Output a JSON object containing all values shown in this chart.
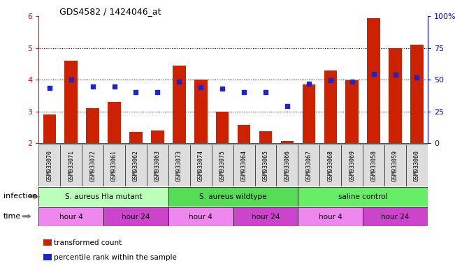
{
  "title": "GDS4582 / 1424046_at",
  "samples": [
    "GSM933070",
    "GSM933071",
    "GSM933072",
    "GSM933061",
    "GSM933062",
    "GSM933063",
    "GSM933073",
    "GSM933074",
    "GSM933075",
    "GSM933064",
    "GSM933065",
    "GSM933066",
    "GSM933067",
    "GSM933068",
    "GSM933069",
    "GSM933058",
    "GSM933059",
    "GSM933060"
  ],
  "bar_values": [
    2.9,
    4.6,
    3.1,
    3.3,
    2.37,
    2.4,
    4.45,
    4.0,
    3.0,
    2.57,
    2.38,
    2.07,
    3.85,
    4.3,
    3.98,
    5.93,
    5.0,
    5.1
  ],
  "dot_values": [
    3.75,
    4.0,
    3.78,
    3.78,
    3.62,
    3.62,
    3.95,
    3.77,
    3.72,
    3.62,
    3.62,
    3.17,
    3.87,
    3.98,
    3.93,
    4.17,
    4.15,
    4.08
  ],
  "bar_color": "#cc2200",
  "dot_color": "#2222cc",
  "ylim_left": [
    2.0,
    6.0
  ],
  "yticks_left": [
    2,
    3,
    4,
    5,
    6
  ],
  "yticks_right": [
    0,
    25,
    50,
    75,
    100
  ],
  "ytick_right_labels": [
    "0",
    "25",
    "50",
    "75",
    "100%"
  ],
  "groups": [
    {
      "label": "S. aureus Hla mutant",
      "start": 0,
      "end": 6,
      "color": "#bbffbb"
    },
    {
      "label": "S. aureus wildtype",
      "start": 6,
      "end": 12,
      "color": "#55dd55"
    },
    {
      "label": "saline control",
      "start": 12,
      "end": 18,
      "color": "#66ee66"
    }
  ],
  "time_groups": [
    {
      "label": "hour 4",
      "start": 0,
      "end": 3,
      "color": "#ee88ee"
    },
    {
      "label": "hour 24",
      "start": 3,
      "end": 6,
      "color": "#cc44cc"
    },
    {
      "label": "hour 4",
      "start": 6,
      "end": 9,
      "color": "#ee88ee"
    },
    {
      "label": "hour 24",
      "start": 9,
      "end": 12,
      "color": "#cc44cc"
    },
    {
      "label": "hour 4",
      "start": 12,
      "end": 15,
      "color": "#ee88ee"
    },
    {
      "label": "hour 24",
      "start": 15,
      "end": 18,
      "color": "#cc44cc"
    }
  ],
  "legend_bar_label": "transformed count",
  "legend_dot_label": "percentile rank within the sample",
  "infection_label": "infection",
  "time_label": "time",
  "bar_width": 0.6,
  "cell_color": "#dddddd"
}
